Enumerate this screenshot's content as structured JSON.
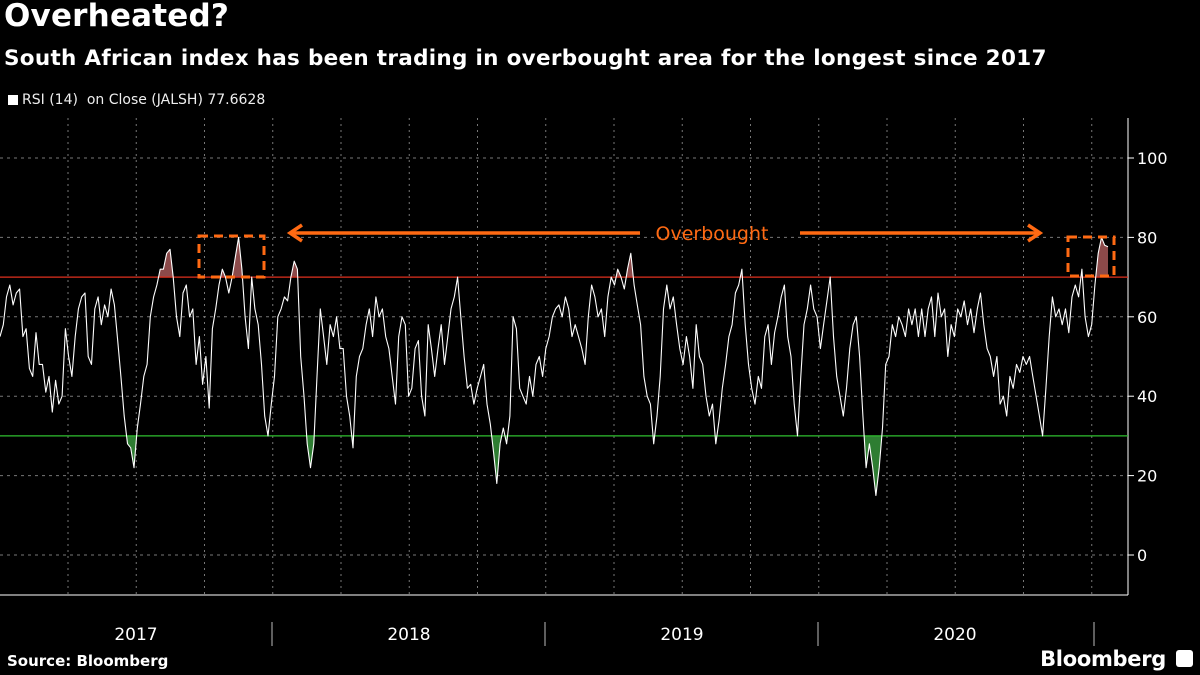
{
  "header": {
    "title": "Overheated?",
    "subtitle": "South African index has been trading in overbought area for the longest since 2017"
  },
  "legend": {
    "label": "RSI (14)  on Close (JALSH) 77.6628",
    "color": "#ffffff"
  },
  "footer": {
    "source": "Source: Bloomberg",
    "brand": "Bloomberg"
  },
  "colors": {
    "line": "#ffffff",
    "overbought_line": "#e0301e",
    "oversold_line": "#2fbf2f",
    "overbought_fill": "#8c4a4a",
    "oversold_fill": "#2e7d32",
    "annotation": "#ff6a13",
    "grid": "#777777"
  },
  "chart_data": {
    "type": "line",
    "title": "Overheated?",
    "series_name": "RSI (14) on Close (JALSH)",
    "last_value": 77.6628,
    "x_start": "2017-01",
    "x_end": "2021-01",
    "ylim": [
      -10,
      110
    ],
    "yticks": [
      0,
      20,
      40,
      60,
      80,
      100
    ],
    "xtick_labels": [
      "2017",
      "2018",
      "2019",
      "2020"
    ],
    "thresholds": {
      "overbought": 70,
      "oversold": 30
    },
    "annotation": "Overbought",
    "grid": true,
    "values": [
      55,
      58,
      65,
      68,
      63,
      66,
      67,
      55,
      57,
      47,
      45,
      56,
      48,
      48,
      41,
      45,
      36,
      44,
      38,
      40,
      57,
      50,
      45,
      55,
      62,
      65,
      66,
      50,
      48,
      62,
      65,
      58,
      63,
      60,
      67,
      63,
      54,
      45,
      35,
      28,
      27,
      22,
      32,
      38,
      45,
      48,
      60,
      65,
      68,
      72,
      72,
      76,
      77,
      70,
      60,
      55,
      66,
      68,
      60,
      62,
      48,
      55,
      43,
      50,
      37,
      57,
      62,
      68,
      72,
      70,
      66,
      70,
      75,
      80,
      72,
      60,
      52,
      70,
      62,
      58,
      48,
      35,
      30,
      38,
      45,
      60,
      62,
      65,
      64,
      70,
      74,
      72,
      50,
      40,
      28,
      22,
      28,
      45,
      62,
      55,
      48,
      58,
      55,
      60,
      52,
      52,
      40,
      35,
      27,
      45,
      50,
      52,
      58,
      62,
      55,
      65,
      60,
      62,
      55,
      52,
      45,
      38,
      55,
      60,
      58,
      40,
      42,
      52,
      54,
      40,
      35,
      58,
      52,
      45,
      52,
      58,
      48,
      55,
      62,
      65,
      70,
      60,
      50,
      42,
      43,
      38,
      42,
      45,
      48,
      38,
      33,
      26,
      18,
      28,
      32,
      28,
      35,
      60,
      57,
      42,
      40,
      38,
      45,
      40,
      48,
      50,
      45,
      52,
      55,
      60,
      62,
      63,
      60,
      65,
      62,
      55,
      58,
      55,
      52,
      48,
      60,
      68,
      65,
      60,
      62,
      55,
      65,
      70,
      68,
      72,
      70,
      67,
      72,
      76,
      68,
      63,
      58,
      45,
      40,
      38,
      28,
      35,
      45,
      62,
      68,
      62,
      65,
      58,
      52,
      48,
      55,
      50,
      42,
      58,
      50,
      48,
      40,
      35,
      38,
      28,
      34,
      42,
      48,
      55,
      58,
      66,
      68,
      72,
      58,
      48,
      42,
      38,
      45,
      42,
      55,
      58,
      48,
      56,
      60,
      65,
      68,
      55,
      50,
      38,
      30,
      45,
      58,
      62,
      68,
      62,
      60,
      52,
      58,
      64,
      70,
      55,
      45,
      40,
      35,
      42,
      52,
      58,
      60,
      50,
      35,
      22,
      28,
      22,
      15,
      22,
      32,
      48,
      50,
      58,
      55,
      60,
      58,
      55,
      62,
      58,
      62,
      55,
      62,
      55,
      62,
      65,
      55,
      66,
      60,
      62,
      50,
      58,
      55,
      62,
      60,
      64,
      58,
      62,
      56,
      62,
      66,
      58,
      52,
      50,
      45,
      50,
      38,
      40,
      35,
      45,
      42,
      48,
      46,
      50,
      48,
      50,
      45,
      40,
      35,
      30,
      42,
      55,
      65,
      60,
      62,
      58,
      62,
      56,
      65,
      68,
      65,
      72,
      60,
      55,
      58,
      68,
      76,
      80,
      78,
      77.6628
    ]
  }
}
